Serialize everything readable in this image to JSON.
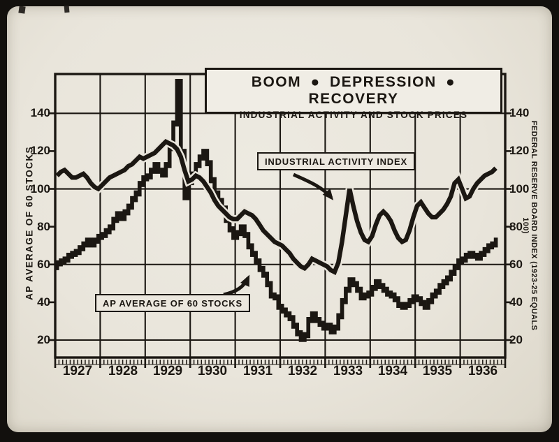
{
  "photo": {
    "paper_color": "#e9e5db",
    "ink_color": "#1b1712"
  },
  "header": {
    "title": "BOOM ● DEPRESSION ● RECOVERY",
    "subtitle": "INDUSTRIAL ACTIVITY AND STOCK PRICES"
  },
  "axes": {
    "left_title": "AP AVERAGE OF 60 STOCKS",
    "right_title": "FEDERAL RESERVE BOARD INDEX (1923-25 EQUALS 100)",
    "y_ticks": [
      "140",
      "120",
      "100",
      "80",
      "60",
      "40",
      "20"
    ],
    "years": [
      "1927",
      "1928",
      "1929",
      "1930",
      "1931",
      "1932",
      "1933",
      "1934",
      "1935",
      "1936"
    ]
  },
  "annotations": {
    "line_label": "INDUSTRIAL ACTIVITY INDEX",
    "bars_label": "AP AVERAGE OF 60 STOCKS"
  },
  "chart_data": {
    "type": "line",
    "title": "BOOM ● DEPRESSION ● RECOVERY — INDUSTRIAL ACTIVITY AND STOCK PRICES",
    "x_unit": "month",
    "x_start": "1927-01",
    "x_end": "1936-10",
    "x_tick_labels": [
      "1927",
      "1928",
      "1929",
      "1930",
      "1931",
      "1932",
      "1933",
      "1934",
      "1935",
      "1936"
    ],
    "ylabel_left": "AP AVERAGE OF 60 STOCKS",
    "ylabel_right": "FEDERAL RESERVE BOARD INDEX (1923-25 EQUALS 100)",
    "ylim": [
      20,
      140
    ],
    "y_tick_values": [
      140,
      120,
      100,
      80,
      60,
      40,
      20
    ],
    "gridline_values": [
      140,
      100,
      60,
      20
    ],
    "minor_tick_values": [
      120,
      80,
      40
    ],
    "grid": "on",
    "legend_position": "inline-callouts",
    "series": [
      {
        "name": "Industrial Activity Index",
        "style": "thick-line",
        "values": [
          107,
          109,
          110,
          108,
          106,
          106,
          107,
          108,
          106,
          103,
          101,
          100,
          102,
          104,
          106,
          107,
          108,
          109,
          110,
          112,
          113,
          115,
          117,
          116,
          117,
          118,
          119,
          121,
          123,
          125,
          124,
          123,
          121,
          117,
          110,
          104,
          105,
          107,
          106,
          104,
          101,
          98,
          94,
          91,
          89,
          87,
          85,
          84,
          84,
          86,
          88,
          87,
          86,
          84,
          81,
          78,
          76,
          74,
          72,
          71,
          70,
          68,
          66,
          63,
          61,
          59,
          58,
          60,
          63,
          62,
          61,
          60,
          59,
          57,
          56,
          61,
          72,
          86,
          100,
          91,
          83,
          77,
          73,
          72,
          75,
          81,
          86,
          88,
          86,
          83,
          78,
          74,
          72,
          73,
          78,
          85,
          91,
          93,
          90,
          87,
          85,
          85,
          87,
          89,
          92,
          96,
          103,
          105,
          100,
          95,
          96,
          100,
          103,
          105,
          107,
          108,
          109,
          111
        ]
      },
      {
        "name": "AP Average of 60 Stocks",
        "style": "monthly-bars",
        "values": [
          61,
          62,
          63,
          65,
          66,
          67,
          69,
          71,
          73,
          71,
          73,
          75,
          76,
          78,
          80,
          84,
          87,
          85,
          88,
          91,
          95,
          98,
          103,
          106,
          107,
          110,
          113,
          110,
          108,
          113,
          122,
          135,
          157,
          120,
          96,
          104,
          108,
          113,
          117,
          120,
          114,
          105,
          98,
          94,
          90,
          84,
          79,
          75,
          77,
          80,
          76,
          70,
          66,
          62,
          58,
          55,
          50,
          44,
          43,
          38,
          36,
          34,
          32,
          28,
          24,
          21,
          23,
          31,
          34,
          31,
          29,
          27,
          28,
          25,
          27,
          33,
          41,
          47,
          52,
          50,
          47,
          43,
          44,
          45,
          48,
          51,
          49,
          47,
          45,
          44,
          42,
          39,
          38,
          39,
          41,
          43,
          42,
          40,
          38,
          41,
          44,
          46,
          49,
          51,
          53,
          56,
          59,
          62,
          63,
          65,
          66,
          65,
          64,
          66,
          68,
          70,
          71,
          73
        ]
      }
    ]
  }
}
